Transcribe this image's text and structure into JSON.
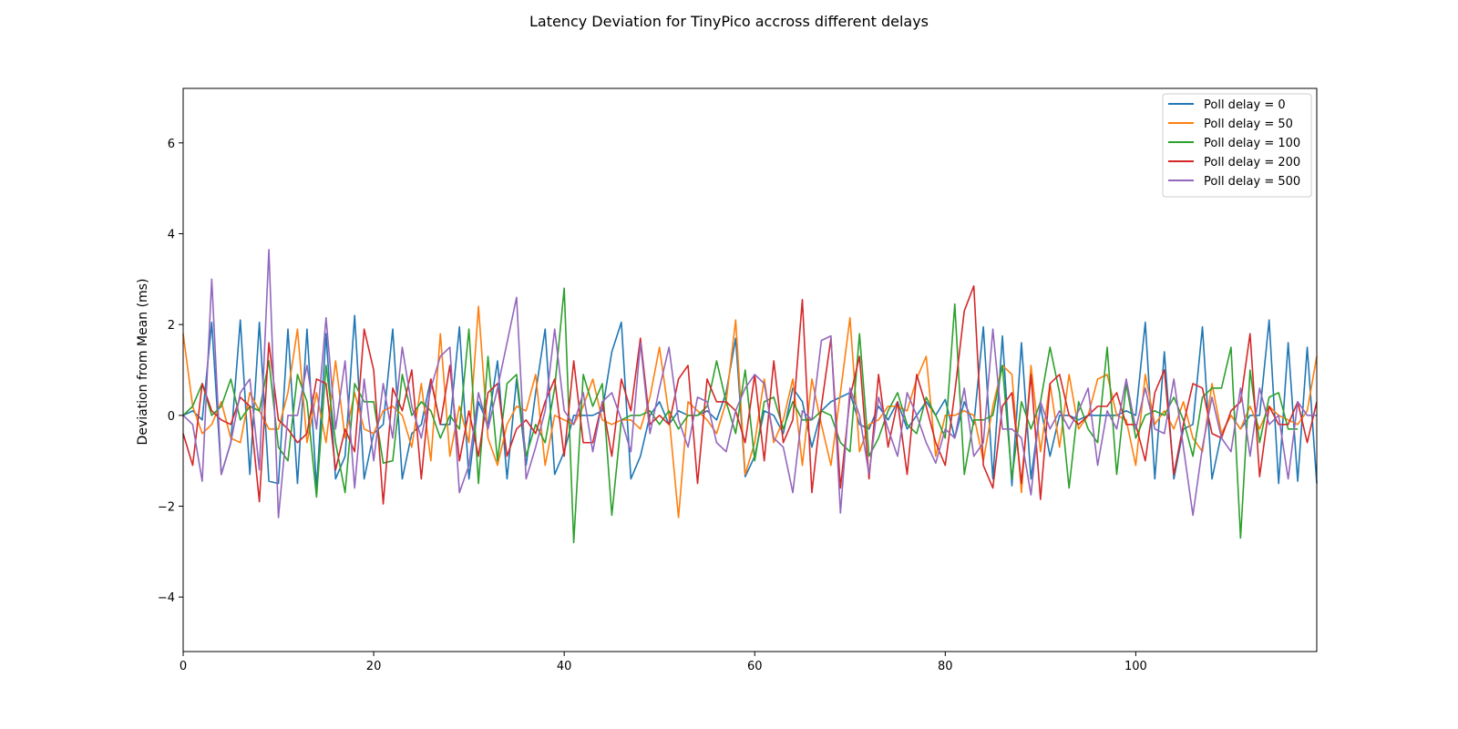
{
  "chart_data": {
    "type": "line",
    "title": "Latency Deviation for TinyPico accross different delays",
    "xlabel": "",
    "ylabel": "Deviation from Mean (ms)",
    "xlim": [
      0,
      119
    ],
    "ylim": [
      -5.2,
      7.2
    ],
    "x_ticks": [
      0,
      20,
      40,
      60,
      80,
      100
    ],
    "y_ticks": [
      -4,
      -2,
      0,
      2,
      4,
      6
    ],
    "grid": false,
    "legend_position": "top-right",
    "series": [
      {
        "name": "Poll delay = 0",
        "color": "#1f77b4",
        "values": [
          0.0,
          0.1,
          -0.1,
          2.05,
          -1.3,
          -0.6,
          2.1,
          -1.3,
          2.05,
          -1.45,
          -1.5,
          1.9,
          -1.5,
          1.9,
          -1.6,
          1.8,
          -1.4,
          -0.9,
          2.2,
          -1.4,
          -0.4,
          -0.2,
          1.9,
          -1.4,
          -0.4,
          -0.2,
          0.8,
          -0.2,
          -0.2,
          1.95,
          -1.4,
          0.3,
          -0.2,
          1.2,
          -1.4,
          0.8,
          -1.1,
          0.5,
          1.9,
          -1.3,
          -0.8,
          0.0,
          0.0,
          0.0,
          0.1,
          1.4,
          2.05,
          -1.4,
          -0.9,
          0.0,
          0.3,
          -0.2,
          0.1,
          0.0,
          0.0,
          0.1,
          -0.1,
          0.5,
          1.7,
          -1.35,
          -0.9,
          0.1,
          0.0,
          -0.4,
          0.6,
          0.3,
          -0.7,
          0.1,
          0.3,
          0.4,
          0.5,
          -0.2,
          -0.3,
          0.2,
          -0.1,
          0.3,
          -0.3,
          0.0,
          0.3,
          0.0,
          0.35,
          -0.5,
          0.3,
          -0.2,
          1.95,
          -1.4,
          1.75,
          -1.55,
          1.6,
          -1.4,
          0.2,
          -0.9,
          0.0,
          0.0,
          -0.1,
          0.0,
          0.0,
          0.0,
          0.0,
          0.1,
          0.0,
          2.05,
          -1.4,
          1.4,
          -1.4,
          -0.3,
          -0.2,
          1.95,
          -1.4,
          -0.4,
          0.0,
          -0.3,
          0.0,
          0.0,
          2.1,
          -1.5,
          1.6,
          -1.45,
          1.5,
          -1.5
        ]
      },
      {
        "name": "Poll delay = 50",
        "color": "#ff7f0e",
        "values": [
          1.8,
          0.2,
          -0.4,
          -0.2,
          0.3,
          -0.5,
          -0.6,
          0.5,
          0.1,
          -0.3,
          -0.3,
          0.5,
          1.9,
          -0.6,
          0.5,
          -0.6,
          1.2,
          -0.5,
          0.5,
          -0.3,
          -0.4,
          0.1,
          0.2,
          0.0,
          -0.7,
          0.7,
          -1.0,
          1.8,
          -0.9,
          0.2,
          -0.6,
          2.4,
          -0.5,
          -1.1,
          -0.2,
          0.2,
          0.1,
          0.9,
          -1.1,
          0.0,
          -0.1,
          -0.2,
          0.2,
          0.8,
          -0.1,
          -0.2,
          -0.1,
          -0.1,
          -0.3,
          0.4,
          1.5,
          0.0,
          -2.25,
          0.3,
          0.1,
          -0.1,
          -0.4,
          0.3,
          2.1,
          -1.3,
          -0.6,
          0.8,
          -0.6,
          -0.1,
          0.8,
          -1.1,
          0.8,
          -0.2,
          -1.1,
          0.5,
          2.15,
          -0.8,
          -0.2,
          -0.1,
          0.2,
          0.2,
          0.1,
          0.8,
          1.3,
          -0.9,
          0.0,
          0.0,
          0.1,
          0.0,
          -1.0,
          0.2,
          1.1,
          0.9,
          -1.7,
          1.1,
          -0.8,
          0.7,
          -0.7,
          0.9,
          -0.3,
          0.0,
          0.8,
          0.9,
          0.0,
          -0.1,
          -1.1,
          0.9,
          -0.2,
          0.1,
          -0.3,
          0.3,
          -0.5,
          -0.8,
          0.7,
          -0.4,
          0.0,
          -0.3,
          0.2,
          -0.3,
          0.2,
          0.0,
          -0.1,
          -0.2,
          0.1,
          1.3
        ]
      },
      {
        "name": "Poll delay = 100",
        "color": "#2ca02c",
        "values": [
          0.0,
          0.2,
          0.7,
          0.0,
          0.2,
          0.8,
          -0.1,
          0.2,
          0.1,
          1.2,
          -0.7,
          -1.0,
          0.9,
          0.3,
          -1.8,
          1.1,
          -0.6,
          -1.7,
          0.7,
          0.3,
          0.3,
          -1.05,
          -1.0,
          0.9,
          0.0,
          0.3,
          0.1,
          -0.5,
          0.0,
          -0.3,
          1.9,
          -1.5,
          1.3,
          -1.0,
          0.7,
          0.9,
          -0.9,
          -0.2,
          -0.6,
          0.6,
          2.8,
          -2.8,
          0.9,
          0.2,
          0.7,
          -2.2,
          -0.1,
          0.0,
          0.0,
          0.1,
          -0.2,
          0.1,
          -0.3,
          0.0,
          0.0,
          0.2,
          1.2,
          0.3,
          -0.4,
          1.0,
          -1.0,
          0.3,
          0.4,
          -0.3,
          0.3,
          -0.1,
          -0.1,
          0.1,
          0.0,
          -0.6,
          -0.8,
          1.8,
          -0.9,
          -0.5,
          0.1,
          0.5,
          -0.2,
          -0.4,
          0.4,
          0.0,
          -0.5,
          2.45,
          -1.3,
          -0.1,
          -0.1,
          0.0,
          1.1,
          -1.4,
          0.3,
          -0.3,
          0.3,
          1.5,
          0.5,
          -1.6,
          0.3,
          -0.3,
          -0.6,
          1.5,
          -1.3,
          0.7,
          -0.5,
          0.0,
          0.1,
          0.0,
          0.4,
          -0.1,
          -0.9,
          0.4,
          0.6,
          0.6,
          1.5,
          -2.7,
          1.0,
          -0.6,
          0.4,
          0.5,
          -0.3,
          -0.3
        ]
      },
      {
        "name": "Poll delay = 200",
        "color": "#d62728",
        "values": [
          -0.4,
          -1.1,
          0.7,
          0.1,
          -0.1,
          -0.2,
          0.4,
          0.2,
          -1.9,
          1.6,
          -0.1,
          -0.3,
          -0.6,
          -0.4,
          0.8,
          0.7,
          -1.2,
          -0.3,
          -0.8,
          1.9,
          1.0,
          -1.95,
          0.6,
          0.1,
          1.0,
          -1.4,
          0.8,
          -0.2,
          1.1,
          -1.0,
          0.1,
          -0.9,
          0.5,
          0.7,
          -0.9,
          -0.3,
          -0.1,
          -0.4,
          0.3,
          0.8,
          -0.9,
          1.2,
          -0.6,
          -0.6,
          0.3,
          -0.9,
          0.8,
          0.1,
          1.7,
          -0.2,
          0.0,
          -0.2,
          0.8,
          1.1,
          -1.5,
          0.8,
          0.3,
          0.3,
          0.1,
          -0.6,
          0.9,
          -1.0,
          1.2,
          -0.6,
          -0.1,
          2.55,
          -1.7,
          0.2,
          1.7,
          -1.6,
          0.4,
          1.3,
          -1.4,
          0.9,
          -0.7,
          0.3,
          -1.3,
          0.9,
          0.2,
          -0.6,
          -1.1,
          0.5,
          2.3,
          2.85,
          -1.1,
          -1.6,
          0.2,
          0.5,
          -1.5,
          0.9,
          -1.85,
          0.7,
          0.9,
          0.0,
          -0.2,
          0.0,
          0.2,
          0.2,
          0.5,
          -0.2,
          -0.2,
          -1.0,
          0.5,
          1.0,
          -1.3,
          -0.2,
          0.7,
          0.6,
          -0.4,
          -0.5,
          0.1,
          0.3,
          1.8,
          -1.35,
          0.2,
          -0.2,
          -0.2,
          0.3,
          -0.6,
          0.3
        ]
      },
      {
        "name": "Poll delay = 500",
        "color": "#9467bd",
        "values": [
          0.0,
          -0.2,
          -1.45,
          3.0,
          -1.3,
          -0.6,
          0.5,
          0.8,
          -1.2,
          3.65,
          -2.25,
          0.0,
          0.0,
          1.1,
          -0.3,
          2.15,
          -0.3,
          1.2,
          -1.6,
          0.8,
          -1.0,
          0.7,
          -0.5,
          1.5,
          0.2,
          -0.5,
          0.6,
          1.3,
          1.5,
          -1.7,
          -1.1,
          0.5,
          -0.3,
          0.6,
          1.6,
          2.6,
          -1.4,
          -0.7,
          0.1,
          1.9,
          0.1,
          -0.2,
          0.5,
          -0.8,
          0.3,
          0.5,
          -0.1,
          -0.8,
          1.6,
          -0.4,
          0.6,
          1.5,
          -0.1,
          -0.7,
          0.4,
          0.3,
          -0.6,
          -0.8,
          0.1,
          0.6,
          0.9,
          0.7,
          -0.5,
          -0.7,
          -1.7,
          0.1,
          -0.1,
          1.65,
          1.75,
          -2.15,
          0.6,
          0.0,
          -1.3,
          0.4,
          -0.3,
          -0.9,
          0.5,
          0.0,
          -0.6,
          -1.05,
          -0.3,
          -0.5,
          0.6,
          -0.9,
          -0.6,
          1.9,
          -0.3,
          -0.3,
          -0.5,
          -1.75,
          0.3,
          -0.3,
          0.1,
          -0.3,
          0.1,
          0.6,
          -1.1,
          0.1,
          -0.3,
          0.8,
          -0.3,
          0.6,
          -0.3,
          -0.4,
          0.8,
          -0.7,
          -2.2,
          -0.7,
          0.4,
          -0.5,
          -0.8,
          0.6,
          -0.9,
          0.6,
          -0.2,
          0.0,
          -1.4,
          0.3,
          0.0,
          0.0
        ]
      }
    ]
  }
}
